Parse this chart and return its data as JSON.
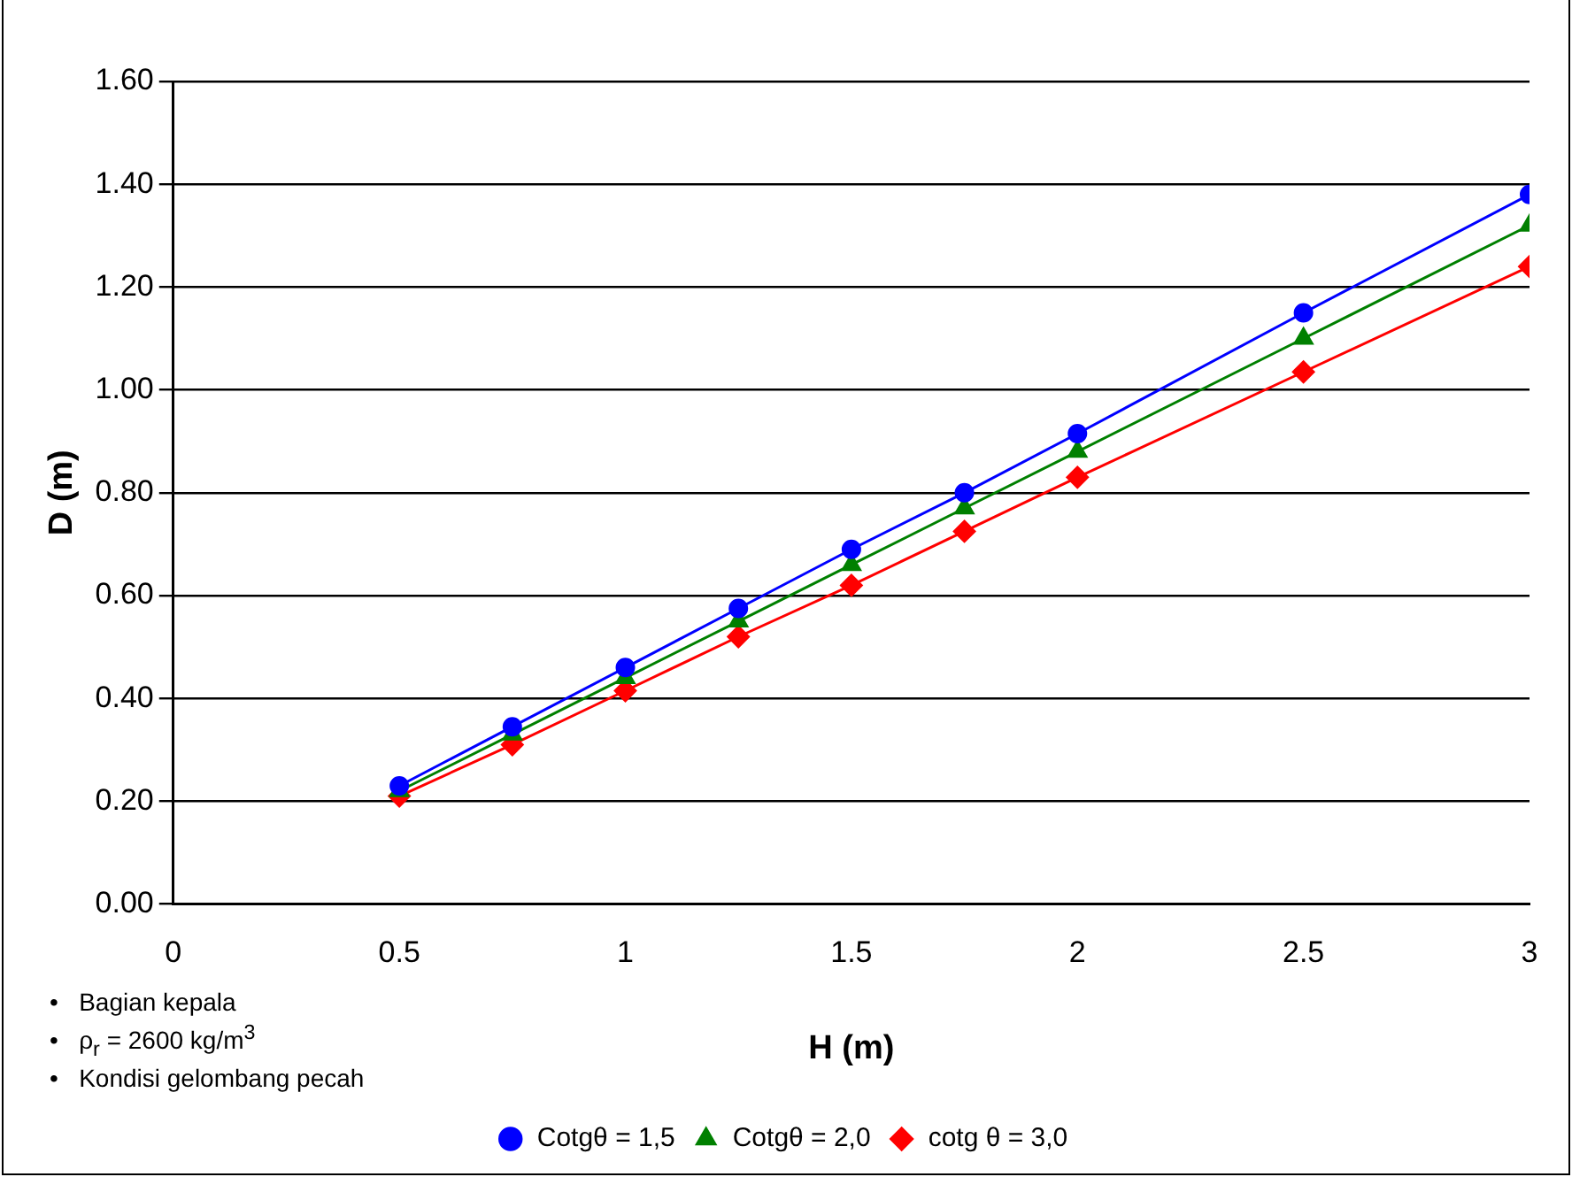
{
  "chart_data": {
    "type": "line",
    "xlabel": "H (m)",
    "ylabel": "D (m)",
    "x": [
      0.5,
      0.75,
      1,
      1.25,
      1.5,
      1.75,
      2,
      2.5,
      3
    ],
    "series": [
      {
        "name": "Cotgθ = 1,5",
        "color": "#0000ff",
        "marker": "circle",
        "values": [
          0.23,
          0.345,
          0.46,
          0.575,
          0.69,
          0.8,
          0.915,
          1.15,
          1.38
        ]
      },
      {
        "name": "Cotgθ = 2,0",
        "color": "#008000",
        "marker": "triangle",
        "values": [
          0.22,
          0.33,
          0.44,
          0.55,
          0.66,
          0.77,
          0.88,
          1.1,
          1.32
        ]
      },
      {
        "name": "cotg θ = 3,0",
        "color": "#ff0000",
        "marker": "diamond",
        "values": [
          0.21,
          0.31,
          0.415,
          0.52,
          0.62,
          0.725,
          0.83,
          1.035,
          1.24
        ]
      }
    ],
    "xlim": [
      0,
      3
    ],
    "xticks": [
      0,
      0.5,
      1,
      1.5,
      2,
      2.5,
      3
    ],
    "ylim": [
      0,
      1.6
    ],
    "yticks": [
      {
        "value": 0,
        "label": "0.00"
      },
      {
        "value": 0.2,
        "label": "0.20"
      },
      {
        "value": 0.4,
        "label": "0.40"
      },
      {
        "value": 0.6,
        "label": "0.60"
      },
      {
        "value": 0.8,
        "label": "0.80"
      },
      {
        "value": 1,
        "label": "1.00"
      },
      {
        "value": 1.2,
        "label": "1.20"
      },
      {
        "value": 1.4,
        "label": "1.40"
      },
      {
        "value": 1.6,
        "label": "1.60"
      }
    ],
    "grid": "y",
    "legend": "bottom",
    "line_style": "solid",
    "annotations": [
      "•   Bagian kepala",
      "•   ρ$_{r}$ = 2600 kg/m$^{3}$",
      "•   Kondisi gelombang pecah"
    ]
  }
}
